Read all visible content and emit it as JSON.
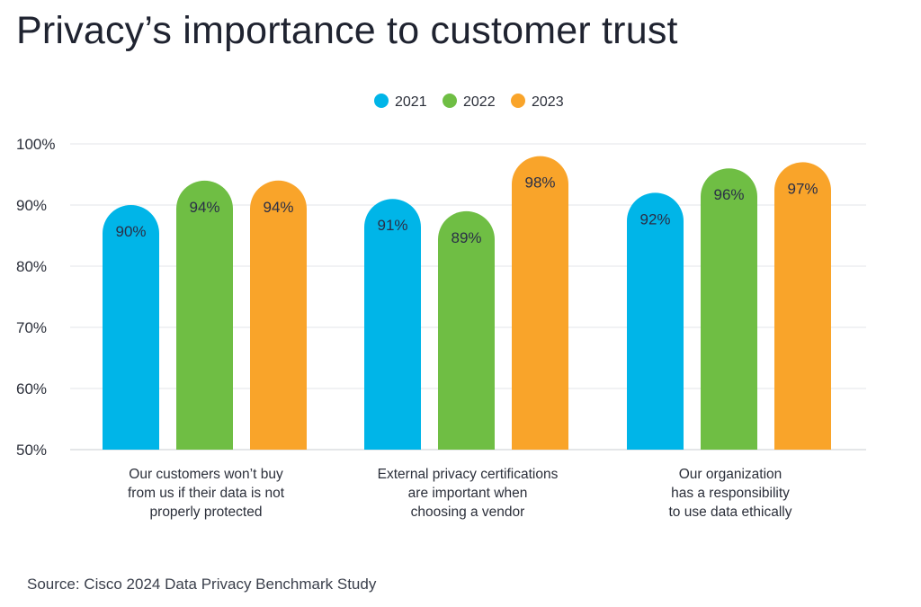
{
  "title": "Privacy’s importance to customer trust",
  "source": "Source: Cisco 2024 Data Privacy Benchmark Study",
  "chart_data": {
    "type": "bar",
    "categories": [
      [
        "Our customers won’t buy",
        "from us if their data is not",
        "properly protected"
      ],
      [
        "External privacy certifications",
        "are important when",
        "choosing a vendor"
      ],
      [
        "Our organization",
        "has a responsibility",
        "to use data ethically"
      ]
    ],
    "series": [
      {
        "name": "2021",
        "color": "#00b5e8",
        "values": [
          90,
          91,
          92
        ],
        "labels": [
          "90%",
          "91%",
          "92%"
        ]
      },
      {
        "name": "2022",
        "color": "#6fbe44",
        "values": [
          94,
          89,
          96
        ],
        "labels": [
          "94%",
          "89%",
          "96%"
        ]
      },
      {
        "name": "2023",
        "color": "#f9a42a",
        "values": [
          94,
          98,
          97
        ],
        "labels": [
          "94%",
          "98%",
          "97%"
        ]
      }
    ],
    "ylim": [
      50,
      100
    ],
    "yticks": [
      50,
      60,
      70,
      80,
      90,
      100
    ],
    "ytick_labels": [
      "50%",
      "60%",
      "70%",
      "80%",
      "90%",
      "100%"
    ],
    "grid": true,
    "legend_position": "top-center"
  }
}
